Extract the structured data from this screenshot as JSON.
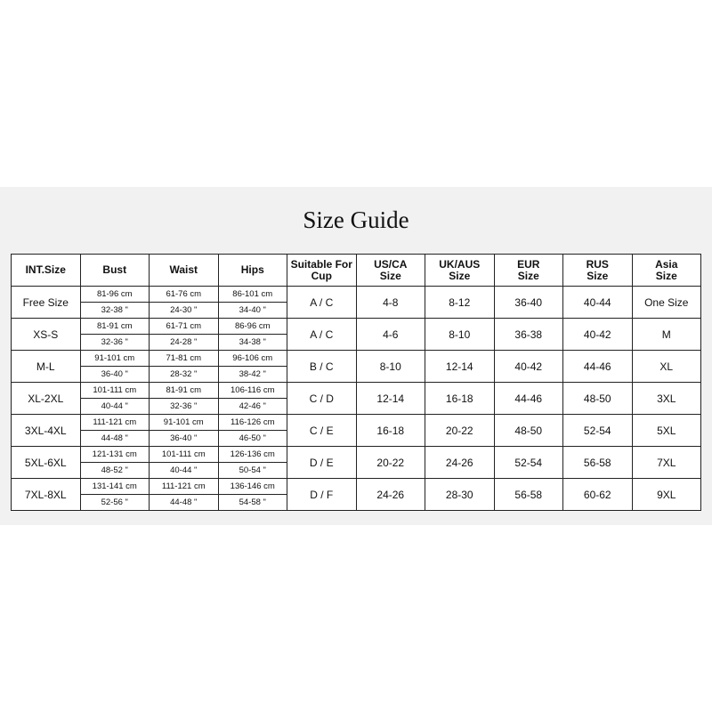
{
  "title": "Size Guide",
  "headers": [
    "INT.Size",
    "Bust",
    "Waist",
    "Hips",
    "Suitable For Cup",
    "US/CA Size",
    "UK/AUS Size",
    "EUR Size",
    "RUS Size",
    "Asia Size"
  ],
  "rows": [
    {
      "size": "Free Size",
      "bust_cm": "81-96 cm",
      "bust_in": "32-38 \"",
      "waist_cm": "61-76 cm",
      "waist_in": "24-30 \"",
      "hips_cm": "86-101 cm",
      "hips_in": "34-40 \"",
      "cup": "A / C",
      "us": "4-8",
      "uk": "8-12",
      "eur": "36-40",
      "rus": "40-44",
      "asia": "One Size"
    },
    {
      "size": "XS-S",
      "bust_cm": "81-91 cm",
      "bust_in": "32-36 \"",
      "waist_cm": "61-71 cm",
      "waist_in": "24-28 \"",
      "hips_cm": "86-96 cm",
      "hips_in": "34-38 \"",
      "cup": "A / C",
      "us": "4-6",
      "uk": "8-10",
      "eur": "36-38",
      "rus": "40-42",
      "asia": "M"
    },
    {
      "size": "M-L",
      "bust_cm": "91-101 cm",
      "bust_in": "36-40 \"",
      "waist_cm": "71-81 cm",
      "waist_in": "28-32 \"",
      "hips_cm": "96-106 cm",
      "hips_in": "38-42 \"",
      "cup": "B / C",
      "us": "8-10",
      "uk": "12-14",
      "eur": "40-42",
      "rus": "44-46",
      "asia": "XL"
    },
    {
      "size": "XL-2XL",
      "bust_cm": "101-111 cm",
      "bust_in": "40-44 \"",
      "waist_cm": "81-91 cm",
      "waist_in": "32-36 \"",
      "hips_cm": "106-116 cm",
      "hips_in": "42-46 \"",
      "cup": "C / D",
      "us": "12-14",
      "uk": "16-18",
      "eur": "44-46",
      "rus": "48-50",
      "asia": "3XL"
    },
    {
      "size": "3XL-4XL",
      "bust_cm": "111-121 cm",
      "bust_in": "44-48 \"",
      "waist_cm": "91-101 cm",
      "waist_in": "36-40 \"",
      "hips_cm": "116-126 cm",
      "hips_in": "46-50 \"",
      "cup": "C / E",
      "us": "16-18",
      "uk": "20-22",
      "eur": "48-50",
      "rus": "52-54",
      "asia": "5XL"
    },
    {
      "size": "5XL-6XL",
      "bust_cm": "121-131 cm",
      "bust_in": "48-52 \"",
      "waist_cm": "101-111 cm",
      "waist_in": "40-44 \"",
      "hips_cm": "126-136 cm",
      "hips_in": "50-54 \"",
      "cup": "D / E",
      "us": "20-22",
      "uk": "24-26",
      "eur": "52-54",
      "rus": "56-58",
      "asia": "7XL"
    },
    {
      "size": "7XL-8XL",
      "bust_cm": "131-141 cm",
      "bust_in": "52-56 \"",
      "waist_cm": "111-121 cm",
      "waist_in": "44-48 \"",
      "hips_cm": "136-146 cm",
      "hips_in": "54-58 \"",
      "cup": "D / F",
      "us": "24-26",
      "uk": "28-30",
      "eur": "56-58",
      "rus": "60-62",
      "asia": "9XL"
    }
  ]
}
